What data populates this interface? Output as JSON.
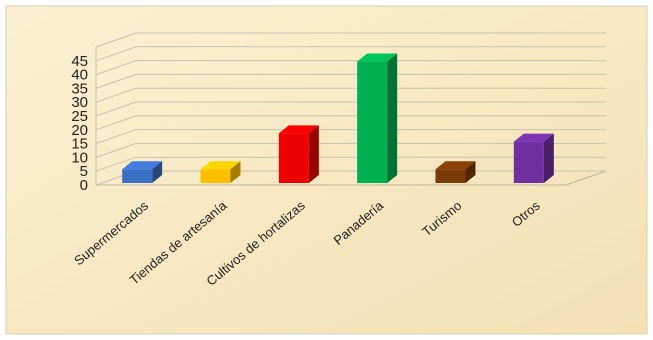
{
  "chart_data": {
    "type": "bar",
    "categories": [
      "Supermercados",
      "Tiendas de artesanía",
      "Cultivos de hortalizas",
      "Panadería",
      "Turismo",
      "Otros"
    ],
    "values": [
      5,
      5,
      18,
      44,
      5,
      15
    ],
    "y_ticks": [
      "0",
      "5",
      "10",
      "15",
      "20",
      "25",
      "30",
      "35",
      "40",
      "45"
    ],
    "ylim": [
      0,
      50
    ],
    "grid": true,
    "legend": "none",
    "colors": [
      "#3b6fc4",
      "#ffc000",
      "#ee0000",
      "#00b050",
      "#7a3a06",
      "#7030a0"
    ]
  }
}
